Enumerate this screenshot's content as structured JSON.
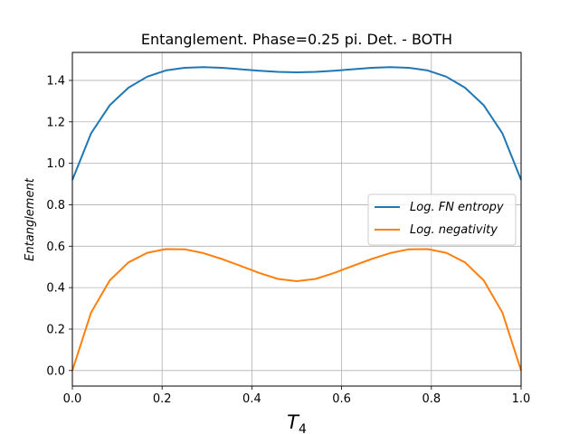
{
  "chart_data": {
    "type": "line",
    "title": "Entanglement. Phase=0.25 pi. Det. - BOTH",
    "xlabel_main": "T",
    "xlabel_sub": "4",
    "ylabel": "Entanglement",
    "xlim": [
      0.0,
      1.0
    ],
    "ylim": [
      -0.075,
      1.535
    ],
    "xticks": [
      0.0,
      0.2,
      0.4,
      0.6,
      0.8,
      1.0
    ],
    "xtick_labels": [
      "0.0",
      "0.2",
      "0.4",
      "0.6",
      "0.8",
      "1.0"
    ],
    "yticks": [
      0.0,
      0.2,
      0.4,
      0.6,
      0.8,
      1.0,
      1.2,
      1.4
    ],
    "ytick_labels": [
      "0.0",
      "0.2",
      "0.4",
      "0.6",
      "0.8",
      "1.0",
      "1.2",
      "1.4"
    ],
    "grid": true,
    "legend_position": "center-right",
    "x": [
      0.0,
      0.0417,
      0.0833,
      0.125,
      0.1667,
      0.2083,
      0.25,
      0.2917,
      0.3333,
      0.375,
      0.4167,
      0.4583,
      0.5,
      0.5417,
      0.5833,
      0.625,
      0.6667,
      0.7083,
      0.75,
      0.7917,
      0.8333,
      0.875,
      0.9167,
      0.9583,
      1.0
    ],
    "series": [
      {
        "name": "Log. FN entropy",
        "color": "#1f77b4",
        "values": [
          0.92,
          1.145,
          1.28,
          1.365,
          1.418,
          1.448,
          1.461,
          1.464,
          1.461,
          1.454,
          1.447,
          1.441,
          1.439,
          1.441,
          1.447,
          1.454,
          1.461,
          1.464,
          1.461,
          1.448,
          1.418,
          1.365,
          1.28,
          1.145,
          0.92
        ]
      },
      {
        "name": "Log. negativity",
        "color": "#ff7f0e",
        "values": [
          0.0,
          0.28,
          0.435,
          0.522,
          0.568,
          0.586,
          0.585,
          0.567,
          0.538,
          0.505,
          0.471,
          0.442,
          0.431,
          0.442,
          0.471,
          0.505,
          0.538,
          0.567,
          0.585,
          0.586,
          0.568,
          0.522,
          0.435,
          0.28,
          0.0
        ]
      }
    ],
    "legend_labels": [
      "Log. FN entropy",
      "Log. negativity"
    ]
  }
}
